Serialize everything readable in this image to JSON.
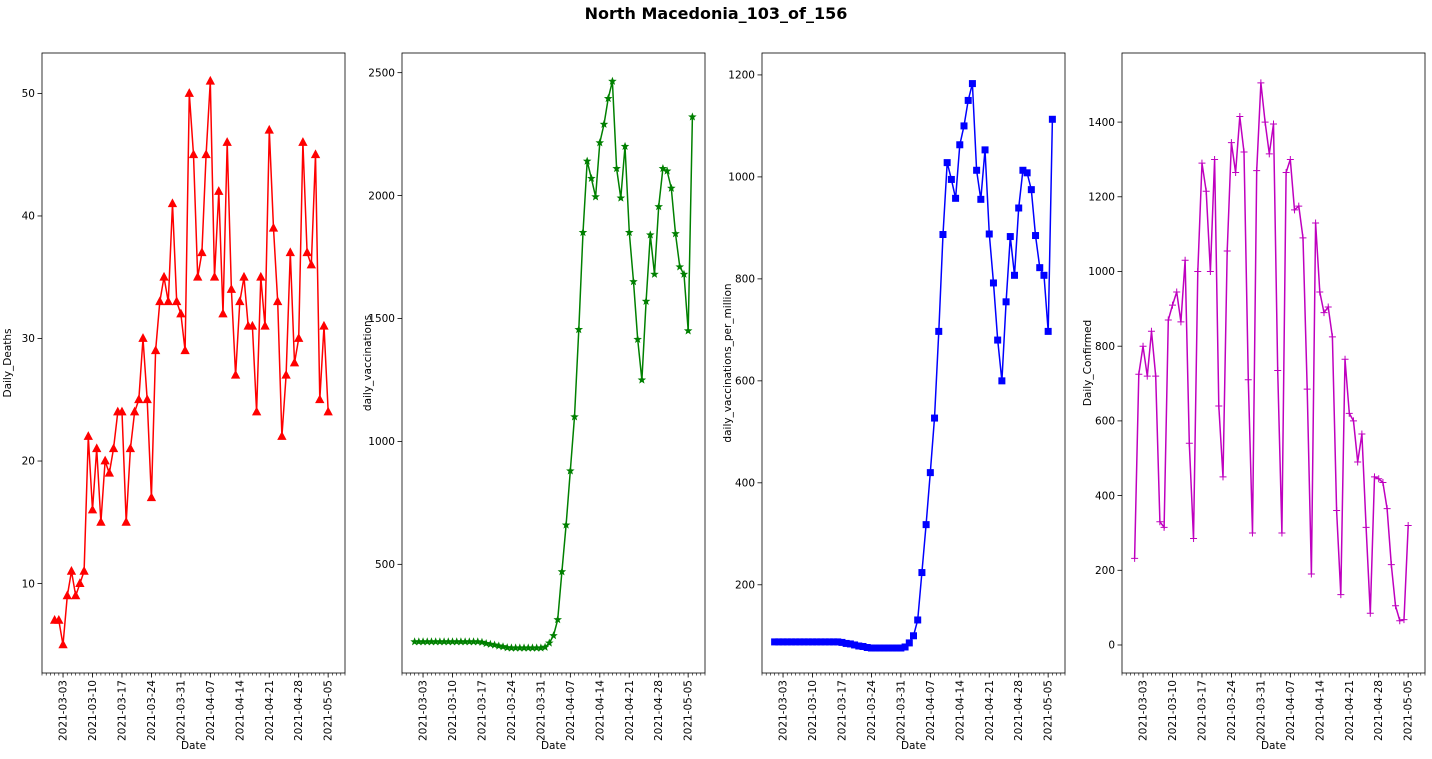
{
  "title": "North Macedonia_103_of_156",
  "chart_data": [
    {
      "type": "line",
      "marker": "triangle",
      "color": "#ff0000",
      "xlabel": "Date",
      "ylabel": "Daily_Deaths",
      "x_start": "2021-03-01",
      "x_range": [
        "2021-02-26",
        "2021-05-09"
      ],
      "ylim": [
        2.7,
        53.3
      ],
      "xticks": [
        "2021-03-03",
        "2021-03-10",
        "2021-03-17",
        "2021-03-24",
        "2021-03-31",
        "2021-04-07",
        "2021-04-14",
        "2021-04-21",
        "2021-04-28",
        "2021-05-05"
      ],
      "yticks": [
        10,
        20,
        30,
        40,
        50
      ],
      "grid": false,
      "series": [
        {
          "values": [
            7,
            7,
            5,
            9,
            11,
            9,
            10,
            11,
            22,
            16,
            21,
            15,
            20,
            19,
            21,
            24,
            24,
            15,
            21,
            24,
            25,
            30,
            25,
            17,
            29,
            33,
            35,
            33,
            41,
            33,
            32,
            29,
            50,
            45,
            35,
            37,
            45,
            51,
            35,
            42,
            32,
            46,
            34,
            27,
            33,
            35,
            31,
            31,
            24,
            35,
            31,
            47,
            39,
            33,
            22,
            27,
            37,
            28,
            30,
            46,
            37,
            36,
            45,
            25,
            31,
            24
          ]
        }
      ]
    },
    {
      "type": "line",
      "marker": "star",
      "color": "#008000",
      "xlabel": "Date",
      "ylabel": "daily_vaccinations",
      "x_start": "2021-03-01",
      "x_range": [
        "2021-02-26",
        "2021-05-09"
      ],
      "ylim": [
        58,
        2580
      ],
      "xticks": [
        "2021-03-03",
        "2021-03-10",
        "2021-03-17",
        "2021-03-24",
        "2021-03-31",
        "2021-04-07",
        "2021-04-14",
        "2021-04-21",
        "2021-04-28",
        "2021-05-05"
      ],
      "yticks": [
        500,
        1000,
        1500,
        2000,
        2500
      ],
      "grid": false,
      "series": [
        {
          "values": [
            185,
            185,
            185,
            185,
            185,
            185,
            185,
            185,
            185,
            185,
            185,
            185,
            185,
            185,
            185,
            185,
            183,
            178,
            175,
            172,
            168,
            165,
            161,
            160,
            160,
            160,
            160,
            160,
            160,
            160,
            160,
            163,
            180,
            210,
            275,
            470,
            660,
            880,
            1100,
            1455,
            1850,
            2140,
            2070,
            1995,
            2215,
            2290,
            2395,
            2465,
            2110,
            1990,
            2200,
            1850,
            1650,
            1415,
            1250,
            1570,
            1840,
            1680,
            1955,
            2110,
            2100,
            2030,
            1845,
            1710,
            1680,
            1450,
            2320
          ]
        }
      ]
    },
    {
      "type": "line",
      "marker": "square",
      "color": "#0000ff",
      "xlabel": "Date",
      "ylabel": "daily_vaccinations_per_million",
      "x_start": "2021-03-01",
      "x_range": [
        "2021-02-26",
        "2021-05-09"
      ],
      "ylim": [
        27,
        1243
      ],
      "xticks": [
        "2021-03-03",
        "2021-03-10",
        "2021-03-17",
        "2021-03-24",
        "2021-03-31",
        "2021-04-07",
        "2021-04-14",
        "2021-04-21",
        "2021-04-28",
        "2021-05-05"
      ],
      "yticks": [
        200,
        400,
        600,
        800,
        1000,
        1200
      ],
      "grid": false,
      "series": [
        {
          "values": [
            88,
            88,
            88,
            88,
            88,
            88,
            88,
            88,
            88,
            88,
            88,
            88,
            88,
            88,
            88,
            88,
            87,
            85,
            84,
            82,
            80,
            79,
            77,
            76,
            76,
            76,
            76,
            76,
            76,
            76,
            76,
            78,
            86,
            100,
            131,
            224,
            318,
            420,
            527,
            697,
            887,
            1028,
            995,
            958,
            1063,
            1100,
            1150,
            1183,
            1013,
            956,
            1053,
            888,
            792,
            680,
            600,
            755,
            883,
            807,
            939,
            1013,
            1008,
            975,
            885,
            822,
            807,
            697,
            1113
          ]
        }
      ]
    },
    {
      "type": "line",
      "marker": "plus",
      "color": "#bf00bf",
      "xlabel": "Date",
      "ylabel": "Daily_Confirmed",
      "x_start": "2021-03-01",
      "x_range": [
        "2021-02-26",
        "2021-05-09"
      ],
      "ylim": [
        -75,
        1585
      ],
      "xticks": [
        "2021-03-03",
        "2021-03-10",
        "2021-03-17",
        "2021-03-24",
        "2021-03-31",
        "2021-04-07",
        "2021-04-14",
        "2021-04-21",
        "2021-04-28",
        "2021-05-05"
      ],
      "yticks": [
        0,
        200,
        400,
        600,
        800,
        1000,
        1200,
        1400
      ],
      "grid": false,
      "series": [
        {
          "values": [
            232,
            725,
            800,
            720,
            840,
            720,
            330,
            315,
            870,
            910,
            945,
            865,
            1030,
            540,
            285,
            1000,
            1290,
            1215,
            1000,
            1300,
            640,
            450,
            1055,
            1345,
            1265,
            1415,
            1320,
            710,
            300,
            1270,
            1505,
            1400,
            1315,
            1395,
            735,
            300,
            1265,
            1300,
            1165,
            1175,
            1090,
            685,
            190,
            1130,
            945,
            890,
            905,
            825,
            360,
            135,
            765,
            620,
            600,
            490,
            565,
            315,
            85,
            450,
            445,
            435,
            365,
            215,
            105,
            65,
            68,
            320
          ]
        }
      ]
    }
  ]
}
